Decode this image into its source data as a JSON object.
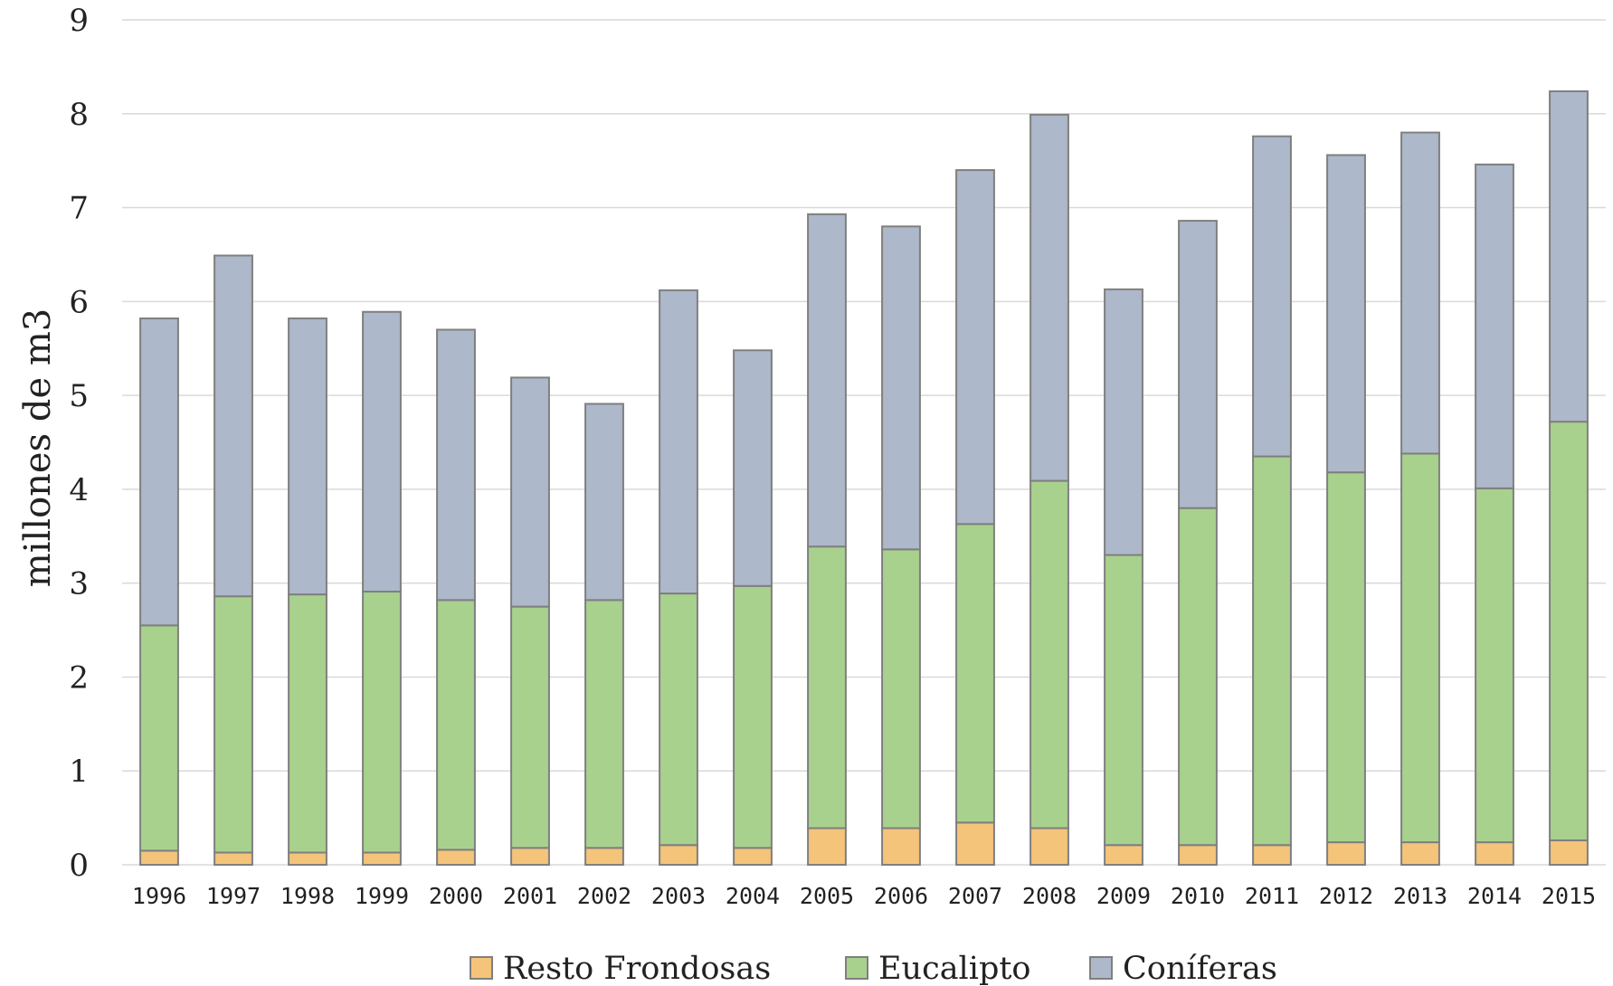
{
  "chart_data": {
    "type": "bar",
    "stacked": true,
    "title": "",
    "xlabel": "",
    "ylabel": "millones de m3",
    "ylim": [
      0,
      9
    ],
    "yticks": [
      "0",
      "1",
      "2",
      "3",
      "4",
      "5",
      "6",
      "7",
      "8",
      "9"
    ],
    "grid": true,
    "legend_position": "bottom",
    "categories": [
      "1996",
      "1997",
      "1998",
      "1999",
      "2000",
      "2001",
      "2002",
      "2003",
      "2004",
      "2005",
      "2006",
      "2007",
      "2008",
      "2009",
      "2010",
      "2011",
      "2012",
      "2013",
      "2014",
      "2015"
    ],
    "series": [
      {
        "name": "Resto Frondosas",
        "color": "#f4c47a",
        "values": [
          0.15,
          0.13,
          0.13,
          0.13,
          0.16,
          0.18,
          0.18,
          0.21,
          0.18,
          0.39,
          0.39,
          0.45,
          0.39,
          0.21,
          0.21,
          0.21,
          0.24,
          0.24,
          0.24,
          0.26
        ]
      },
      {
        "name": "Eucalipto",
        "color": "#a9d18e",
        "values": [
          2.4,
          2.73,
          2.75,
          2.78,
          2.66,
          2.57,
          2.64,
          2.68,
          2.79,
          3.0,
          2.97,
          3.18,
          3.7,
          3.09,
          3.59,
          4.14,
          3.94,
          4.14,
          3.77,
          4.46
        ]
      },
      {
        "name": "Coníferas",
        "color": "#adb9ca",
        "values": [
          3.27,
          3.63,
          2.94,
          2.98,
          2.88,
          2.44,
          2.09,
          3.23,
          2.51,
          3.54,
          3.44,
          3.77,
          3.9,
          2.83,
          3.06,
          3.41,
          3.38,
          3.42,
          3.45,
          3.52
        ]
      }
    ]
  }
}
